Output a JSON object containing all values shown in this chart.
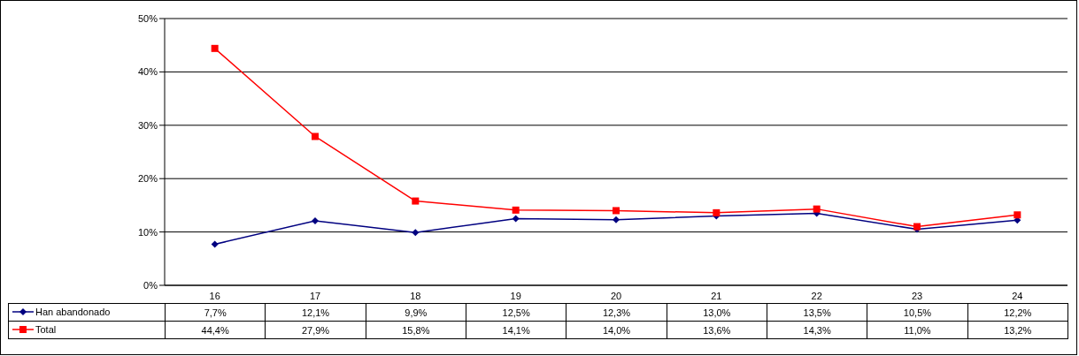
{
  "chart_data": {
    "type": "line",
    "categories": [
      "16",
      "17",
      "18",
      "19",
      "20",
      "21",
      "22",
      "23",
      "24"
    ],
    "series": [
      {
        "name": "Han abandonado",
        "color": "#000080",
        "marker": "diamond",
        "values": [
          7.7,
          12.1,
          9.9,
          12.5,
          12.3,
          13.0,
          13.5,
          10.5,
          12.2
        ],
        "value_labels": [
          "7,7%",
          "12,1%",
          "9,9%",
          "12,5%",
          "12,3%",
          "13,0%",
          "13,5%",
          "10,5%",
          "12,2%"
        ]
      },
      {
        "name": "Total",
        "color": "#ff0000",
        "marker": "square",
        "values": [
          44.4,
          27.9,
          15.8,
          14.1,
          14.0,
          13.6,
          14.3,
          11.0,
          13.2
        ],
        "value_labels": [
          "44,4%",
          "27,9%",
          "15,8%",
          "14,1%",
          "14,0%",
          "13,6%",
          "14,3%",
          "11,0%",
          "13,2%"
        ]
      }
    ],
    "ylim": [
      0,
      50
    ],
    "yticks": [
      {
        "value": 0,
        "label": "0%"
      },
      {
        "value": 10,
        "label": "10%"
      },
      {
        "value": 20,
        "label": "20%"
      },
      {
        "value": 30,
        "label": "30%"
      },
      {
        "value": 40,
        "label": "40%"
      },
      {
        "value": 50,
        "label": "50%"
      }
    ],
    "grid": "y",
    "legend": "bottom left"
  }
}
